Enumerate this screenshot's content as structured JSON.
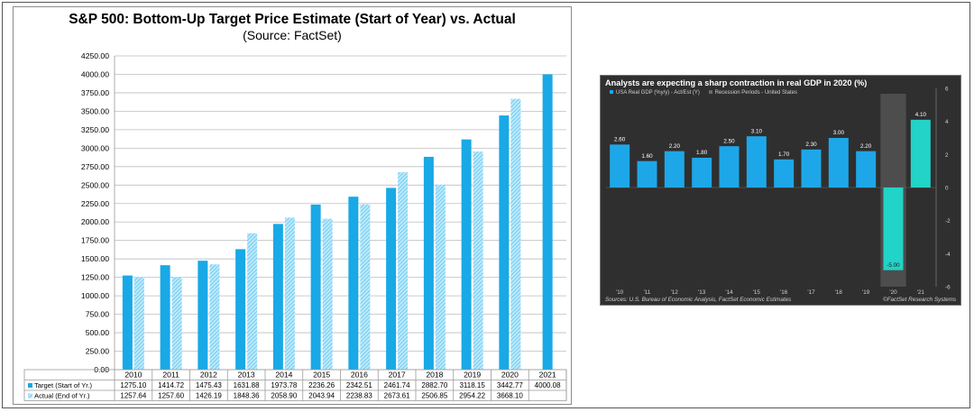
{
  "chart_data": [
    {
      "type": "bar",
      "title": "S&P 500: Bottom-Up Target Price Estimate (Start of Year) vs. Actual",
      "subtitle": "(Source: FactSet)",
      "categories": [
        "2010",
        "2011",
        "2012",
        "2013",
        "2014",
        "2015",
        "2016",
        "2017",
        "2018",
        "2019",
        "2020",
        "2021"
      ],
      "series": [
        {
          "name": "Target (Start of Yr.)",
          "color": "#18a9e6",
          "pattern": "solid",
          "values": [
            1275.1,
            1414.72,
            1475.43,
            1631.88,
            1973.78,
            2236.26,
            2342.51,
            2461.74,
            2882.7,
            3118.15,
            3442.77,
            4000.08
          ],
          "labels": [
            "1275.10",
            "1414.72",
            "1475.43",
            "1631.88",
            "1973.78",
            "2236.26",
            "2342.51",
            "2461.74",
            "2882.70",
            "3118.15",
            "3442.77",
            "4000.08"
          ]
        },
        {
          "name": "Actual (End of Yr.)",
          "color": "#5cc6f0",
          "pattern": "hatched",
          "values": [
            1257.64,
            1257.6,
            1426.19,
            1848.36,
            2058.9,
            2043.94,
            2238.83,
            2673.61,
            2506.85,
            2954.22,
            3668.1,
            null
          ],
          "labels": [
            "1257.64",
            "1257.60",
            "1426.19",
            "1848.36",
            "2058.90",
            "2043.94",
            "2238.83",
            "2673.61",
            "2506.85",
            "2954.22",
            "3668.10",
            ""
          ]
        }
      ],
      "ylim": [
        0,
        4250
      ],
      "yticks": [
        "0.00",
        "250.00",
        "500.00",
        "750.00",
        "1000.00",
        "1250.00",
        "1500.00",
        "1750.00",
        "2000.00",
        "2250.00",
        "2500.00",
        "2750.00",
        "3000.00",
        "3250.00",
        "3500.00",
        "3750.00",
        "4000.00",
        "4250.00"
      ],
      "grid": true,
      "legend": "data-table below chart"
    },
    {
      "type": "bar",
      "title": "Analysts are expecting a sharp contraction in real GDP in 2020 (%)",
      "legend_items": [
        "USA Real GDP (%y/y) - Act/Est (Y)",
        "Recession Periods - United States"
      ],
      "categories": [
        "'10",
        "'11",
        "'12",
        "'13",
        "'14",
        "'15",
        "'16",
        "'17",
        "'18",
        "'19",
        "'20",
        "'21"
      ],
      "values": [
        2.6,
        1.6,
        2.2,
        1.8,
        2.5,
        3.1,
        1.7,
        2.3,
        3.0,
        2.2,
        -5.0,
        4.1
      ],
      "labels": [
        "2.60",
        "1.60",
        "2.20",
        "1.80",
        "2.50",
        "3.10",
        "1.70",
        "2.30",
        "3.00",
        "2.20",
        "-5.00",
        "4.10"
      ],
      "bar_color": "#1ea7e8",
      "estimate_color": "#22d3c7",
      "estimate_categories": [
        "'20",
        "'21"
      ],
      "recession_categories": [
        "'20"
      ],
      "ylim": [
        -6,
        6
      ],
      "yticks": [
        "-6",
        "-4",
        "-2",
        "0",
        "2",
        "4",
        "6"
      ],
      "axis_side": "right",
      "source": "Sources: U.S. Bureau of Economic Analysis, FactSet Economic Estimates",
      "copyright": "©FactSet Research Systems"
    }
  ]
}
